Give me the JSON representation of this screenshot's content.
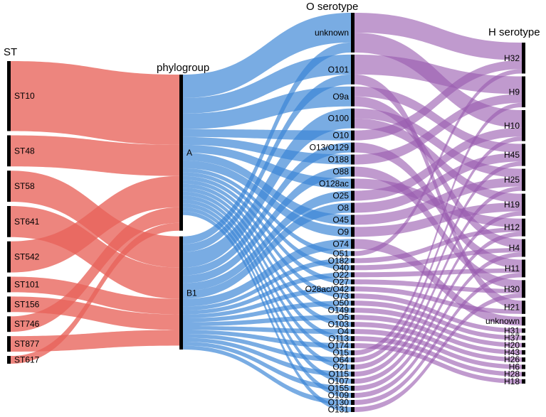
{
  "axes": [
    {
      "key": "st",
      "title": "ST"
    },
    {
      "key": "phylo",
      "title": "phylogroup"
    },
    {
      "key": "o",
      "title": "O serotype"
    },
    {
      "key": "h",
      "title": "H serotype"
    }
  ],
  "colors": {
    "st_flow": "#e8635a",
    "phylo_flow": "#3a85d6",
    "o_flow": "#9a5cb0",
    "node_bar": "#000000",
    "background": "#ffffff"
  },
  "st_nodes": [
    "ST10",
    "ST48",
    "ST58",
    "ST641",
    "ST542",
    "ST101",
    "ST156",
    "ST746",
    "ST877",
    "ST617"
  ],
  "phylo_nodes": [
    "A",
    "B1"
  ],
  "o_nodes": [
    "unknown",
    "O101",
    "O9a",
    "O100",
    "O10",
    "O13/O129",
    "O188",
    "O88",
    "O128ac",
    "O25",
    "O8",
    "O45",
    "O9",
    "O74",
    "O51",
    "O182",
    "O40",
    "O22",
    "O27",
    "O28ac/O42",
    "O73",
    "O50",
    "O149",
    "O5",
    "O103",
    "O4",
    "O113",
    "O174",
    "O15",
    "O64",
    "O21",
    "O115",
    "O107",
    "O155",
    "O109",
    "O130",
    "O131"
  ],
  "h_nodes": [
    "H32",
    "H9",
    "H10",
    "H45",
    "H25",
    "H19",
    "H12",
    "H4",
    "H11",
    "H30",
    "H21",
    "unknown",
    "H31",
    "H37",
    "H20",
    "H43",
    "H26",
    "H6",
    "H28",
    "H18"
  ],
  "chart_data": {
    "type": "sankey",
    "flows_st_to_phylogroup": [
      {
        "source": "ST10",
        "target": "A",
        "value": 9
      },
      {
        "source": "ST48",
        "target": "A",
        "value": 4
      },
      {
        "source": "ST58",
        "target": "B1",
        "value": 4
      },
      {
        "source": "ST641",
        "target": "B1",
        "value": 4
      },
      {
        "source": "ST542",
        "target": "A",
        "value": 4
      },
      {
        "source": "ST101",
        "target": "B1",
        "value": 2
      },
      {
        "source": "ST156",
        "target": "B1",
        "value": 2
      },
      {
        "source": "ST746",
        "target": "A",
        "value": 2
      },
      {
        "source": "ST877",
        "target": "B1",
        "value": 2
      },
      {
        "source": "ST617",
        "target": "A",
        "value": 1
      }
    ],
    "flows_phylogroup_to_o": [
      {
        "source": "A",
        "target": "unknown",
        "value": 3
      },
      {
        "source": "B1",
        "target": "unknown",
        "value": 1
      },
      {
        "source": "A",
        "target": "O101",
        "value": 2
      },
      {
        "source": "B1",
        "target": "O101",
        "value": 1
      },
      {
        "source": "A",
        "target": "O9a",
        "value": 2
      },
      {
        "source": "B1",
        "target": "O100",
        "value": 2
      },
      {
        "source": "A",
        "target": "O10",
        "value": 1
      },
      {
        "source": "B1",
        "target": "O13/O129",
        "value": 1
      },
      {
        "source": "A",
        "target": "O188",
        "value": 1
      },
      {
        "source": "B1",
        "target": "O88",
        "value": 1
      },
      {
        "source": "A",
        "target": "O128ac",
        "value": 1
      },
      {
        "source": "B1",
        "target": "O25",
        "value": 1
      },
      {
        "source": "B1",
        "target": "O8",
        "value": 1
      },
      {
        "source": "A",
        "target": "O45",
        "value": 1
      },
      {
        "source": "A",
        "target": "O9",
        "value": 1
      },
      {
        "source": "B1",
        "target": "O74",
        "value": 1
      },
      {
        "source": "A",
        "target": "O51",
        "value": 0.5
      },
      {
        "source": "B1",
        "target": "O182",
        "value": 0.5
      },
      {
        "source": "A",
        "target": "O40",
        "value": 0.5
      },
      {
        "source": "B1",
        "target": "O22",
        "value": 0.5
      },
      {
        "source": "A",
        "target": "O27",
        "value": 0.5
      },
      {
        "source": "B1",
        "target": "O28ac/O42",
        "value": 0.5
      },
      {
        "source": "A",
        "target": "O73",
        "value": 0.5
      },
      {
        "source": "B1",
        "target": "O50",
        "value": 0.5
      },
      {
        "source": "A",
        "target": "O149",
        "value": 0.5
      },
      {
        "source": "B1",
        "target": "O5",
        "value": 0.5
      },
      {
        "source": "A",
        "target": "O103",
        "value": 0.5
      },
      {
        "source": "B1",
        "target": "O4",
        "value": 0.5
      },
      {
        "source": "A",
        "target": "O113",
        "value": 0.5
      },
      {
        "source": "B1",
        "target": "O174",
        "value": 0.5
      },
      {
        "source": "A",
        "target": "O15",
        "value": 0.5
      },
      {
        "source": "B1",
        "target": "O64",
        "value": 0.5
      },
      {
        "source": "A",
        "target": "O21",
        "value": 0.5
      },
      {
        "source": "B1",
        "target": "O115",
        "value": 0.5
      },
      {
        "source": "A",
        "target": "O107",
        "value": 0.5
      },
      {
        "source": "B1",
        "target": "O155",
        "value": 0.5
      },
      {
        "source": "A",
        "target": "O109",
        "value": 0.5
      },
      {
        "source": "B1",
        "target": "O130",
        "value": 0.5
      },
      {
        "source": "A",
        "target": "O131",
        "value": 0.5
      }
    ],
    "flows_o_to_h": [
      {
        "source": "unknown",
        "target": "H32",
        "value": 2
      },
      {
        "source": "unknown",
        "target": "H10",
        "value": 2
      },
      {
        "source": "O101",
        "target": "H9",
        "value": 2
      },
      {
        "source": "O101",
        "target": "H21",
        "value": 1
      },
      {
        "source": "O9a",
        "target": "H45",
        "value": 1
      },
      {
        "source": "O9a",
        "target": "H4",
        "value": 1
      },
      {
        "source": "O100",
        "target": "H25",
        "value": 1
      },
      {
        "source": "O100",
        "target": "H19",
        "value": 1
      },
      {
        "source": "O10",
        "target": "H32",
        "value": 1
      },
      {
        "source": "O13/O129",
        "target": "H11",
        "value": 1
      },
      {
        "source": "O188",
        "target": "H9",
        "value": 1
      },
      {
        "source": "O88",
        "target": "H30",
        "value": 1
      },
      {
        "source": "O128ac",
        "target": "H12",
        "value": 1
      },
      {
        "source": "O25",
        "target": "H10",
        "value": 1
      },
      {
        "source": "O8",
        "target": "H45",
        "value": 1
      },
      {
        "source": "O45",
        "target": "H25",
        "value": 1
      },
      {
        "source": "O9",
        "target": "H19",
        "value": 1
      },
      {
        "source": "O74",
        "target": "unknown",
        "value": 1
      },
      {
        "source": "O51",
        "target": "H32",
        "value": 0.5
      },
      {
        "source": "O182",
        "target": "H12",
        "value": 0.5
      },
      {
        "source": "O40",
        "target": "H4",
        "value": 0.5
      },
      {
        "source": "O22",
        "target": "H11",
        "value": 0.5
      },
      {
        "source": "O27",
        "target": "H30",
        "value": 0.5
      },
      {
        "source": "O28ac/O42",
        "target": "H21",
        "value": 0.5
      },
      {
        "source": "O73",
        "target": "H31",
        "value": 0.5
      },
      {
        "source": "O50",
        "target": "H37",
        "value": 0.5
      },
      {
        "source": "O149",
        "target": "H20",
        "value": 0.5
      },
      {
        "source": "O5",
        "target": "H43",
        "value": 0.5
      },
      {
        "source": "O103",
        "target": "H26",
        "value": 0.5
      },
      {
        "source": "O4",
        "target": "H6",
        "value": 0.5
      },
      {
        "source": "O113",
        "target": "H28",
        "value": 0.5
      },
      {
        "source": "O174",
        "target": "H18",
        "value": 0.5
      },
      {
        "source": "O15",
        "target": "H9",
        "value": 0.5
      },
      {
        "source": "O64",
        "target": "H10",
        "value": 0.5
      },
      {
        "source": "O21",
        "target": "H45",
        "value": 0.5
      },
      {
        "source": "O115",
        "target": "H25",
        "value": 0.5
      },
      {
        "source": "O107",
        "target": "H19",
        "value": 0.5
      },
      {
        "source": "O155",
        "target": "H12",
        "value": 0.5
      },
      {
        "source": "O109",
        "target": "H4",
        "value": 0.5
      },
      {
        "source": "O130",
        "target": "H11",
        "value": 0.5
      },
      {
        "source": "O131",
        "target": "H30",
        "value": 0.5
      }
    ]
  }
}
